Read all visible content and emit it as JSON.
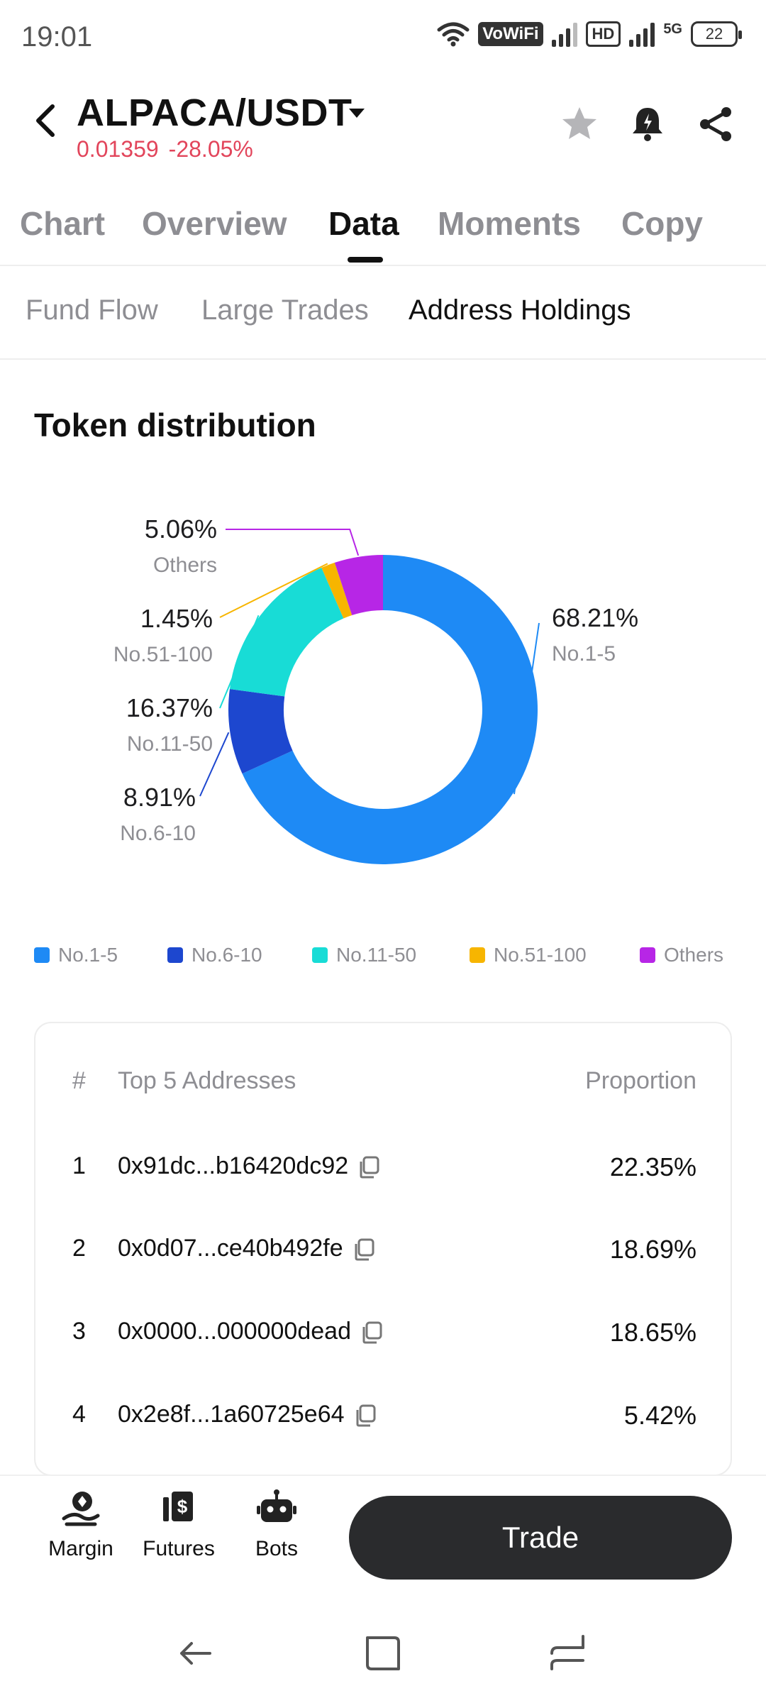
{
  "status_bar": {
    "time": "19:01",
    "vowifi": "VoWiFi",
    "hd": "HD",
    "net": "5G",
    "battery": "22"
  },
  "header": {
    "pair": "ALPACA/USDT",
    "price": "0.01359",
    "change": "-28.05%",
    "change_color": "#e2455b"
  },
  "main_tabs": [
    "Chart",
    "Overview",
    "Data",
    "Moments",
    "Copy"
  ],
  "active_main_tab": "Data",
  "sub_tabs": [
    "Fund Flow",
    "Large Trades",
    "Address Holdings"
  ],
  "active_sub_tab": "Address Holdings",
  "section_title": "Token distribution",
  "chart_data": {
    "type": "pie",
    "title": "Token distribution",
    "slices": [
      {
        "label": "No.1-5",
        "value": 68.21,
        "display": "68.21%",
        "color": "#1e8af5"
      },
      {
        "label": "No.6-10",
        "value": 8.91,
        "display": "8.91%",
        "color": "#1d47cf"
      },
      {
        "label": "No.11-50",
        "value": 16.37,
        "display": "16.37%",
        "color": "#18dcd6"
      },
      {
        "label": "No.51-100",
        "value": 1.45,
        "display": "1.45%",
        "color": "#f7b500"
      },
      {
        "label": "Others",
        "value": 5.06,
        "display": "5.06%",
        "color": "#b726e6"
      }
    ],
    "donut": true,
    "legend_position": "bottom"
  },
  "table": {
    "headers": {
      "index": "#",
      "address": "Top 5 Addresses",
      "proportion": "Proportion"
    },
    "rows": [
      {
        "index": "1",
        "address": "0x91dc...b16420dc92",
        "proportion": "22.35%"
      },
      {
        "index": "2",
        "address": "0x0d07...ce40b492fe",
        "proportion": "18.69%"
      },
      {
        "index": "3",
        "address": "0x0000...000000dead",
        "proportion": "18.65%"
      },
      {
        "index": "4",
        "address": "0x2e8f...1a60725e64",
        "proportion": "5.42%"
      }
    ]
  },
  "bottom_bar": {
    "margin": "Margin",
    "futures": "Futures",
    "bots": "Bots",
    "trade": "Trade"
  }
}
